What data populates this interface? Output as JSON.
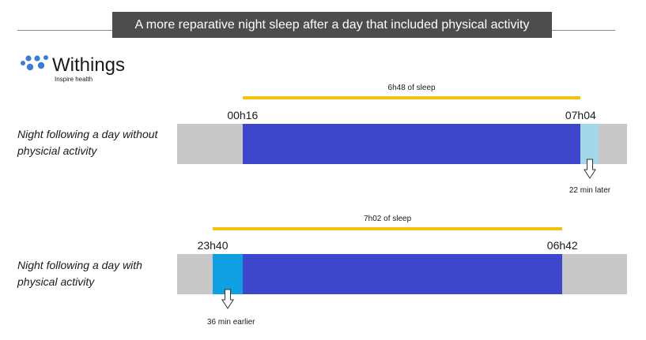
{
  "header": {
    "title": "A more reparative night sleep after a day that included physical activity"
  },
  "logo": {
    "brand": "Withings",
    "tagline": "Inspire health",
    "dot_color": "#3a7dd8"
  },
  "colors": {
    "track": "#c8c8c8",
    "sleep": "#3e46cc",
    "later_extension": "#a3d8ea",
    "earlier_extension": "#109fe0",
    "duration_line": "#f4c20d"
  },
  "chart_data": {
    "type": "timeline",
    "title": "A more reparative night sleep after a day that included physical activity",
    "x_unit": "clock time",
    "xlim": [
      "22h57",
      "08h00"
    ],
    "rows": [
      {
        "label": "Night following a day without physicial activity",
        "sleep_start": "00h16",
        "sleep_end": "07h04",
        "duration": "6h48  of sleep",
        "shift": {
          "text": "22 min  later",
          "direction": "later",
          "minutes": 22
        }
      },
      {
        "label": "Night following a day with physical activity",
        "sleep_start": "23h40",
        "sleep_end": "06h42",
        "duration": "7h02 of sleep",
        "shift": {
          "text": "36 min  earlier",
          "direction": "earlier",
          "minutes": 36
        }
      }
    ]
  }
}
